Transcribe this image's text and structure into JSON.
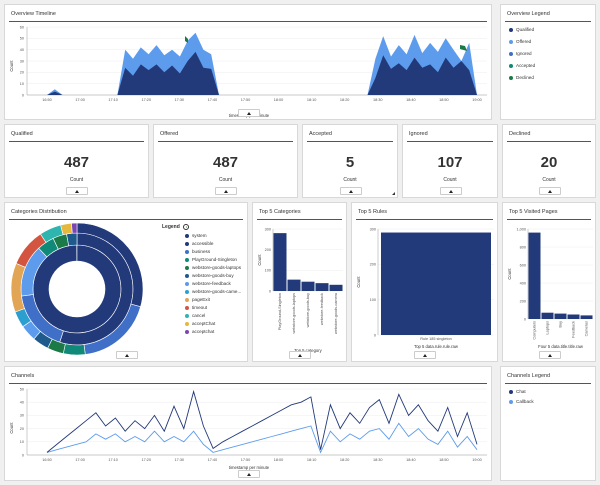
{
  "colors": {
    "dark": "#22397a",
    "mid": "#3f6fc7",
    "light": "#5d9ced",
    "teal": "#0f8a79",
    "green": "#1c7a48"
  },
  "timeline": {
    "title": "Overview Timeline",
    "xlabel": "timestamp per minute",
    "ylabel": "Count",
    "ytick_labels": [
      "60",
      "50",
      "40",
      "30",
      "20",
      "10",
      "0"
    ],
    "xtick_labels": [
      "16:50",
      "17:00",
      "17:10",
      "17:20",
      "17:30",
      "17:40",
      "17:50",
      "18:00",
      "18:10",
      "18:20",
      "18:30",
      "18:40",
      "18:50",
      "19:00"
    ]
  },
  "overview_legend": {
    "title": "Overview Legend",
    "items": [
      {
        "label": "Qualified",
        "color": "#22397a"
      },
      {
        "label": "Offered",
        "color": "#5d9ced"
      },
      {
        "label": "Ignored",
        "color": "#3f6fc7"
      },
      {
        "label": "Accepted",
        "color": "#0f8a79"
      },
      {
        "label": "Declined",
        "color": "#1c7a48"
      }
    ]
  },
  "stats": [
    {
      "title": "Qualified",
      "value": "487",
      "unit": "Count"
    },
    {
      "title": "Offered",
      "value": "487",
      "unit": "Count"
    },
    {
      "title": "Accepted",
      "value": "5",
      "unit": "Count"
    },
    {
      "title": "Ignored",
      "value": "107",
      "unit": "Count"
    },
    {
      "title": "Declined",
      "value": "20",
      "unit": "Count"
    }
  ],
  "categories": {
    "title": "Categories Distribution",
    "legend_title": "Legend",
    "items": [
      {
        "label": "system",
        "color": "#22397a"
      },
      {
        "label": "accessible",
        "color": "#22397a"
      },
      {
        "label": "business",
        "color": "#3f6fc7"
      },
      {
        "label": "PlayGround-Singleton",
        "color": "#0f8a79"
      },
      {
        "label": "webstore-goods-laptops",
        "color": "#1c7a48"
      },
      {
        "label": "webstore-goods-buy",
        "color": "#1e5a8c"
      },
      {
        "label": "webstore-feedback",
        "color": "#5d9ced"
      },
      {
        "label": "webstore-goods-came...",
        "color": "#2b9fcf"
      },
      {
        "label": "pageExit",
        "color": "#e2a556"
      },
      {
        "label": "timeout",
        "color": "#d4553f"
      },
      {
        "label": "cancel",
        "color": "#2eb5b0"
      },
      {
        "label": "acceptChat",
        "color": "#e5b93d"
      },
      {
        "label": "acceptchat",
        "color": "#7a47b0"
      }
    ]
  },
  "top_categories": {
    "title": "Top 5 Categories",
    "xlabel": "Top 5 category",
    "ylabel": "Count",
    "ytick_labels": [
      "300",
      "200",
      "100",
      "0"
    ],
    "bars": [
      {
        "label": "PlayGround-Singleton",
        "value": 280
      },
      {
        "label": "webstore-goods-laptops",
        "value": 55
      },
      {
        "label": "webstore-goods-buy",
        "value": 45
      },
      {
        "label": "webstore-feedback",
        "value": 38
      },
      {
        "label": "webstore-goods-camera",
        "value": 30
      }
    ]
  },
  "top_rules": {
    "title": "Top 5 Rules",
    "xlabel": "Top 5 data.rule.rule.raw",
    "ylabel": "Count",
    "ytick_labels": [
      "300",
      "200",
      "100",
      "0"
    ],
    "bars": [
      {
        "label": "Rule 185 singleton",
        "value": 290
      }
    ]
  },
  "top_pages": {
    "title": "Top 5 Visited Pages",
    "xlabel": "Four 5 data.title.title.raw",
    "ylabel": "Count",
    "ytick_labels": [
      "1,000",
      "800",
      "600",
      "400",
      "200",
      "0"
    ],
    "bars": [
      {
        "label": "Computers",
        "value": 960
      },
      {
        "label": "Laptops",
        "value": 70
      },
      {
        "label": "Buy",
        "value": 60
      },
      {
        "label": "Feedback",
        "value": 50
      },
      {
        "label": "Cameras",
        "value": 40
      }
    ]
  },
  "channels": {
    "title": "Channels",
    "xlabel": "timestamp per minute",
    "ylabel": "Count",
    "ytick_labels": [
      "50",
      "40",
      "30",
      "20",
      "10",
      "0"
    ],
    "xtick_labels": [
      "16:50",
      "17:00",
      "17:10",
      "17:20",
      "17:30",
      "17:40",
      "17:50",
      "18:00",
      "18:10",
      "18:20",
      "18:30",
      "18:40",
      "18:50",
      "19:00"
    ]
  },
  "channels_legend": {
    "title": "Channels Legend",
    "items": [
      {
        "label": "Chat",
        "color": "#22397a"
      },
      {
        "label": "Callback",
        "color": "#5d9ced"
      }
    ]
  },
  "chart_data": [
    {
      "type": "area",
      "title": "Overview Timeline",
      "xlabel": "timestamp per minute",
      "ylabel": "Count",
      "ylim": [
        0,
        60
      ],
      "series": [
        {
          "name": "Qualified",
          "values": [
            0,
            3,
            0,
            0,
            0,
            0,
            0,
            0,
            0,
            0,
            24,
            17,
            27,
            22,
            27,
            20,
            26,
            19,
            30,
            38,
            24,
            23,
            0,
            0,
            0,
            0,
            0,
            0,
            0,
            0,
            0,
            0,
            0,
            0,
            0,
            0,
            0,
            0,
            0,
            0,
            0,
            0,
            15,
            35,
            23,
            28,
            22,
            33,
            24,
            27,
            20,
            33,
            24,
            30,
            22,
            0
          ]
        },
        {
          "name": "Offered",
          "values": [
            0,
            5,
            0,
            0,
            0,
            0,
            0,
            0,
            0,
            0,
            40,
            32,
            42,
            36,
            44,
            35,
            40,
            34,
            48,
            55,
            40,
            36,
            0,
            0,
            0,
            0,
            0,
            0,
            0,
            0,
            0,
            0,
            0,
            0,
            0,
            0,
            0,
            0,
            0,
            0,
            0,
            0,
            32,
            52,
            34,
            44,
            36,
            53,
            37,
            46,
            38,
            50,
            40,
            30,
            46,
            0
          ]
        }
      ]
    },
    {
      "type": "bar",
      "title": "Top 5 Categories",
      "categories": [
        "PlayGround-Singleton",
        "webstore-goods-laptops",
        "webstore-goods-buy",
        "webstore-feedback",
        "webstore-goods-camera"
      ],
      "values": [
        280,
        55,
        45,
        38,
        30
      ],
      "ylabel": "Count",
      "xlabel": "Top 5 category",
      "ylim": [
        0,
        300
      ]
    },
    {
      "type": "bar",
      "title": "Top 5 Rules",
      "categories": [
        "Rule 185 singleton"
      ],
      "values": [
        290
      ],
      "ylabel": "Count",
      "xlabel": "Top 5 data.rule.rule.raw",
      "ylim": [
        0,
        300
      ]
    },
    {
      "type": "bar",
      "title": "Top 5 Visited Pages",
      "categories": [
        "Computers",
        "Laptops",
        "Buy",
        "Feedback",
        "Cameras"
      ],
      "values": [
        960,
        70,
        60,
        50,
        40
      ],
      "ylabel": "Count",
      "xlabel": "Four 5 data.title.title.raw",
      "ylim": [
        0,
        1000
      ]
    },
    {
      "type": "line",
      "title": "Channels",
      "xlabel": "timestamp per minute",
      "ylabel": "Count",
      "ylim": [
        0,
        50
      ],
      "series": [
        {
          "name": "Chat",
          "values": [
            2,
            8,
            14,
            20,
            26,
            32,
            22,
            28,
            18,
            26,
            20,
            30,
            18,
            37,
            20,
            48,
            22,
            5,
            10,
            14,
            18,
            22,
            26,
            30,
            34,
            38,
            40,
            44,
            4,
            38,
            20,
            32,
            24,
            36,
            42,
            24,
            46,
            30,
            38,
            26,
            18,
            36,
            14,
            32,
            8
          ]
        },
        {
          "name": "Callback",
          "values": [
            2,
            4,
            6,
            8,
            10,
            16,
            12,
            16,
            10,
            14,
            10,
            18,
            10,
            14,
            10,
            18,
            8,
            2,
            4,
            6,
            8,
            10,
            12,
            14,
            16,
            18,
            20,
            22,
            2,
            18,
            10,
            16,
            12,
            18,
            20,
            12,
            24,
            14,
            20,
            12,
            8,
            18,
            6,
            14,
            4
          ]
        }
      ]
    },
    {
      "type": "pie",
      "title": "Categories Distribution",
      "categories": [
        "system",
        "accessible",
        "business",
        "PlayGround-Singleton",
        "webstore-goods-laptops",
        "webstore-goods-buy",
        "webstore-feedback",
        "webstore-goods-came...",
        "pageExit",
        "timeout",
        "cancel",
        "acceptChat",
        "acceptchat"
      ],
      "values": [
        30,
        22,
        14,
        4,
        3,
        3,
        3,
        3,
        9,
        7,
        4,
        2,
        1
      ]
    }
  ]
}
